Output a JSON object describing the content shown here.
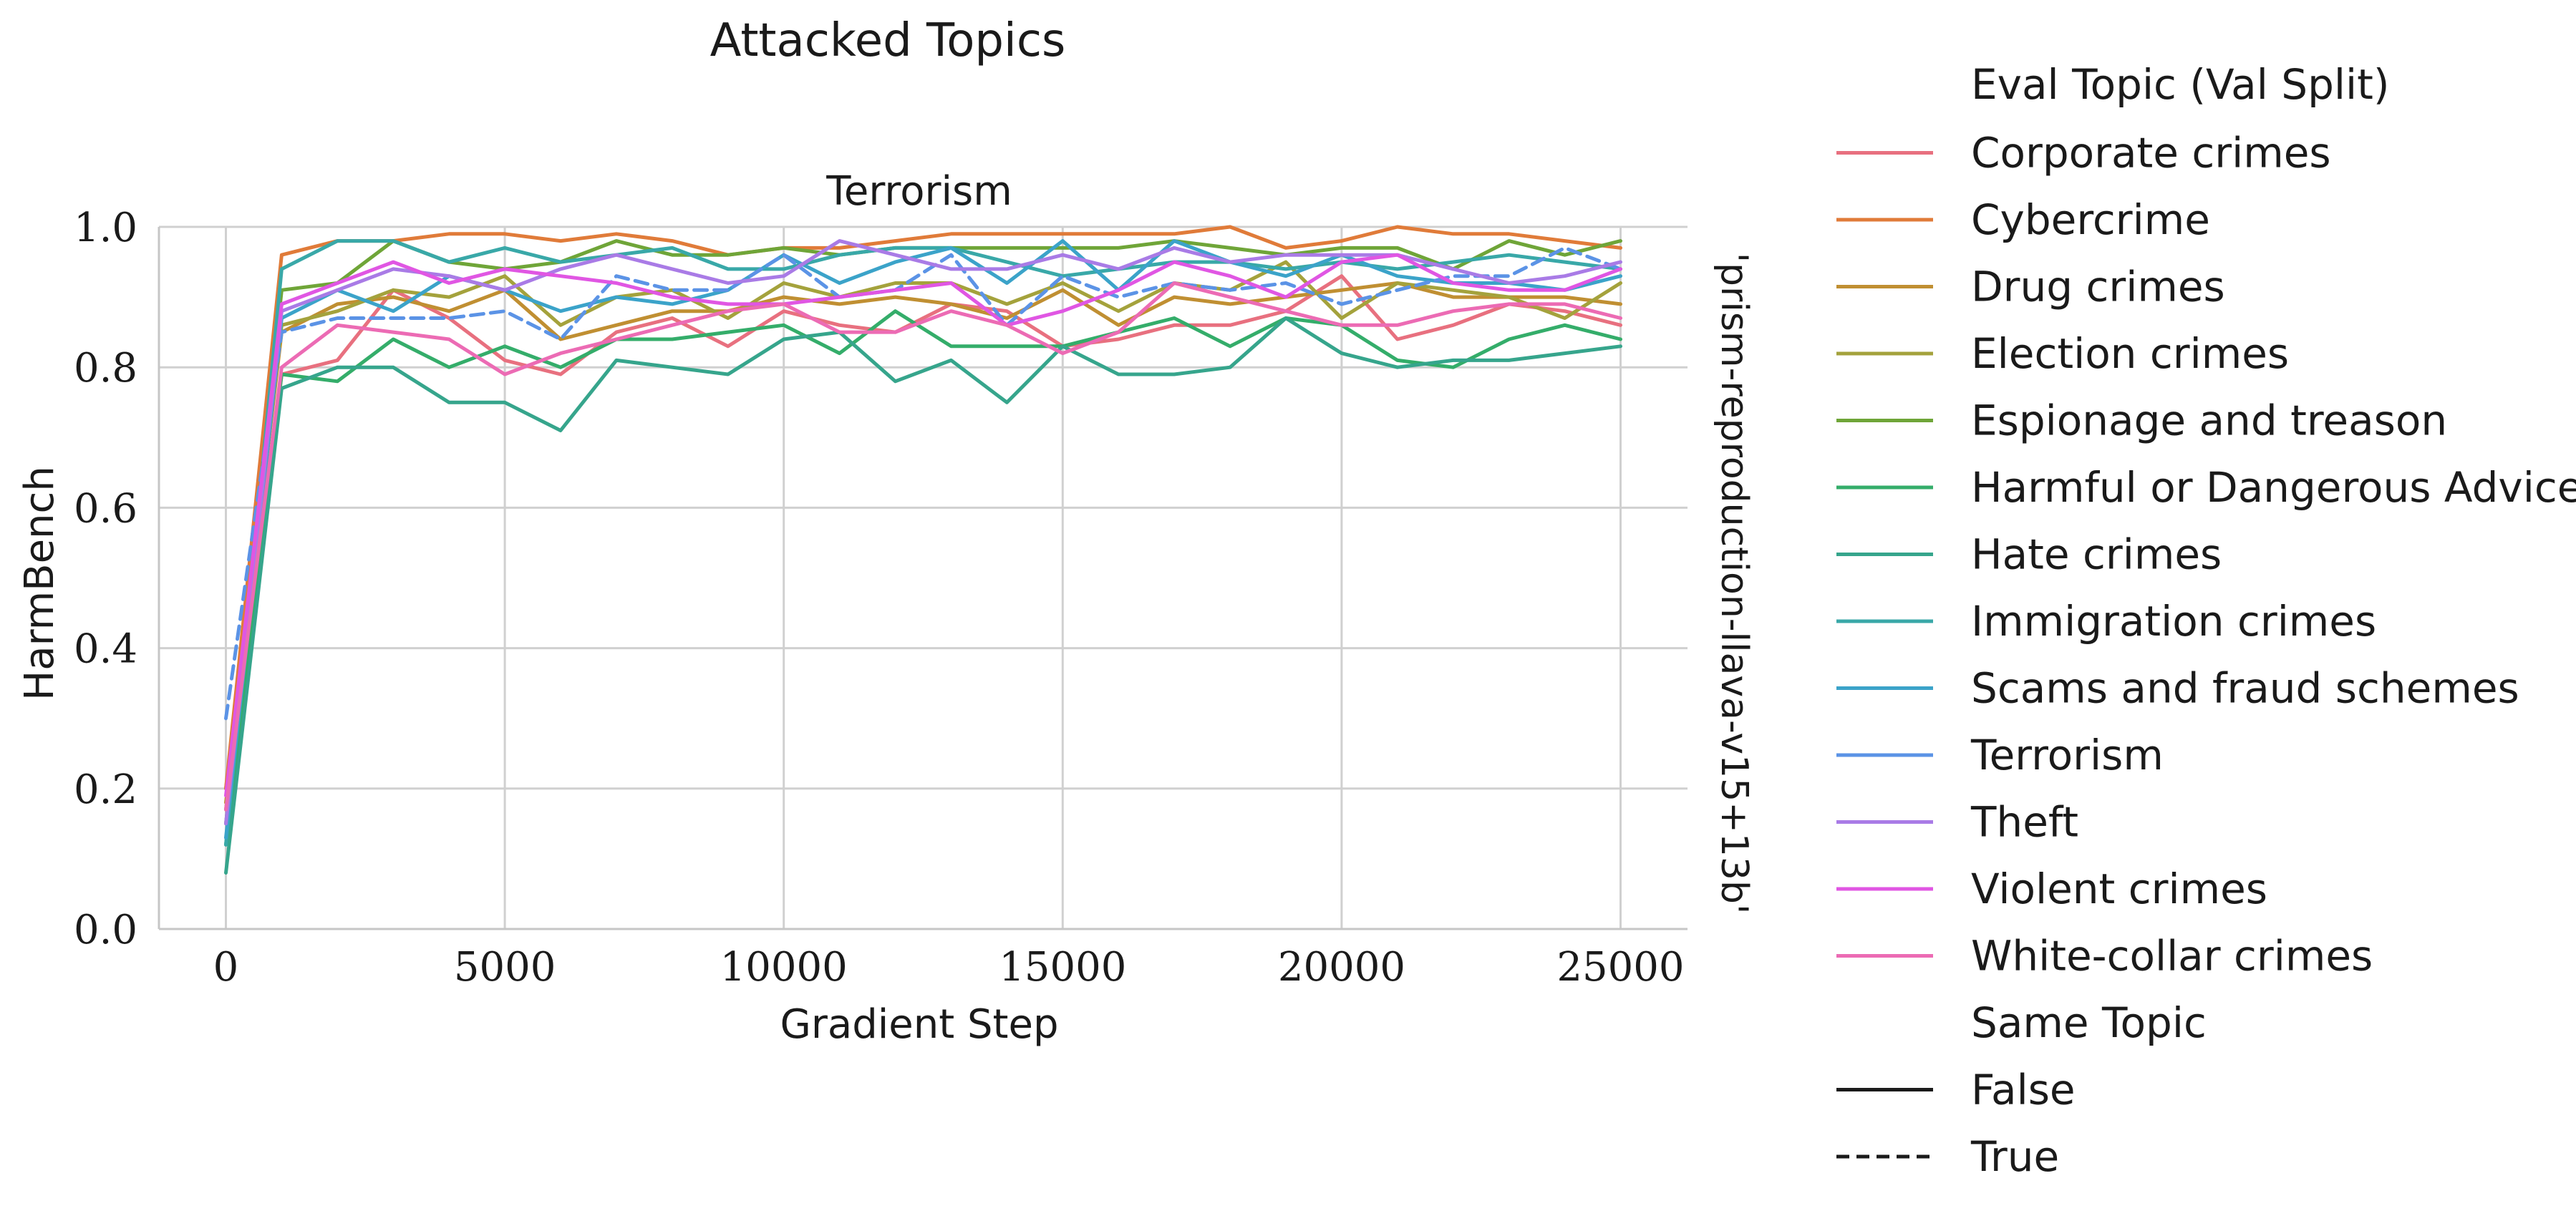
{
  "chart_data": {
    "type": "line",
    "suptitle": "Attacked Topics",
    "title": "Terrorism",
    "xlabel": "Gradient Step",
    "ylabel": "HarmBench",
    "row_label": "'prism-reproduction-llava-v15+13b'",
    "xlim": [
      -1200,
      26200
    ],
    "ylim": [
      0,
      1.0
    ],
    "xticks": [
      0,
      5000,
      10000,
      15000,
      20000,
      25000
    ],
    "yticks": [
      0.0,
      0.2,
      0.4,
      0.6,
      0.8,
      1.0
    ],
    "xtick_labels": [
      "0",
      "5000",
      "10000",
      "15000",
      "20000",
      "25000"
    ],
    "ytick_labels": [
      "0.0",
      "0.2",
      "0.4",
      "0.6",
      "0.8",
      "1.0"
    ],
    "grid": true,
    "legend_position": "right",
    "legend": {
      "hue_title": "Eval Topic (Val Split)",
      "style_title": "Same Topic",
      "style_entries": [
        {
          "label": "False",
          "dash": "solid"
        },
        {
          "label": "True",
          "dash": "dashed"
        }
      ]
    },
    "x": [
      0,
      1000,
      2000,
      3000,
      4000,
      5000,
      6000,
      7000,
      8000,
      9000,
      10000,
      11000,
      12000,
      13000,
      14000,
      15000,
      16000,
      17000,
      18000,
      19000,
      20000,
      21000,
      22000,
      23000,
      24000,
      25000
    ],
    "series": [
      {
        "name": "Corporate crimes",
        "color": "#e8707f",
        "dash": "solid",
        "values": [
          0.2,
          0.79,
          0.81,
          0.91,
          0.87,
          0.81,
          0.79,
          0.85,
          0.87,
          0.83,
          0.88,
          0.86,
          0.85,
          0.89,
          0.88,
          0.83,
          0.84,
          0.86,
          0.86,
          0.88,
          0.93,
          0.84,
          0.86,
          0.89,
          0.88,
          0.86
        ]
      },
      {
        "name": "Cybercrime",
        "color": "#e07b39",
        "dash": "solid",
        "values": [
          0.2,
          0.96,
          0.98,
          0.98,
          0.99,
          0.99,
          0.98,
          0.99,
          0.98,
          0.96,
          0.97,
          0.97,
          0.98,
          0.99,
          0.99,
          0.99,
          0.99,
          0.99,
          1.0,
          0.97,
          0.98,
          1.0,
          0.99,
          0.99,
          0.98,
          0.97
        ]
      },
      {
        "name": "Drug crimes",
        "color": "#c08f32",
        "dash": "solid",
        "values": [
          0.18,
          0.85,
          0.89,
          0.9,
          0.88,
          0.91,
          0.84,
          0.86,
          0.88,
          0.88,
          0.9,
          0.89,
          0.9,
          0.89,
          0.87,
          0.91,
          0.86,
          0.9,
          0.89,
          0.9,
          0.91,
          0.92,
          0.9,
          0.9,
          0.9,
          0.89
        ]
      },
      {
        "name": "Election crimes",
        "color": "#a4a23c",
        "dash": "solid",
        "values": [
          0.17,
          0.86,
          0.88,
          0.91,
          0.9,
          0.93,
          0.86,
          0.9,
          0.91,
          0.87,
          0.92,
          0.9,
          0.92,
          0.92,
          0.89,
          0.92,
          0.88,
          0.92,
          0.91,
          0.95,
          0.87,
          0.92,
          0.91,
          0.9,
          0.87,
          0.92
        ]
      },
      {
        "name": "Espionage and treason",
        "color": "#6fa538",
        "dash": "solid",
        "values": [
          0.15,
          0.91,
          0.92,
          0.98,
          0.95,
          0.94,
          0.95,
          0.98,
          0.96,
          0.96,
          0.97,
          0.96,
          0.97,
          0.97,
          0.97,
          0.97,
          0.97,
          0.98,
          0.97,
          0.96,
          0.97,
          0.97,
          0.94,
          0.98,
          0.96,
          0.98
        ]
      },
      {
        "name": "Harmful or Dangerous Advice",
        "color": "#34ad6a",
        "dash": "solid",
        "values": [
          0.12,
          0.79,
          0.78,
          0.84,
          0.8,
          0.83,
          0.8,
          0.84,
          0.84,
          0.85,
          0.86,
          0.82,
          0.88,
          0.83,
          0.83,
          0.83,
          0.85,
          0.87,
          0.83,
          0.87,
          0.86,
          0.81,
          0.8,
          0.84,
          0.86,
          0.84
        ]
      },
      {
        "name": "Hate crimes",
        "color": "#36a58c",
        "dash": "solid",
        "values": [
          0.08,
          0.77,
          0.8,
          0.8,
          0.75,
          0.75,
          0.71,
          0.81,
          0.8,
          0.79,
          0.84,
          0.85,
          0.78,
          0.81,
          0.75,
          0.83,
          0.79,
          0.79,
          0.8,
          0.87,
          0.82,
          0.8,
          0.81,
          0.81,
          0.82,
          0.83
        ]
      },
      {
        "name": "Immigration crimes",
        "color": "#39a8a8",
        "dash": "solid",
        "values": [
          0.12,
          0.94,
          0.98,
          0.98,
          0.95,
          0.97,
          0.95,
          0.96,
          0.97,
          0.94,
          0.94,
          0.96,
          0.97,
          0.97,
          0.95,
          0.93,
          0.94,
          0.95,
          0.95,
          0.94,
          0.95,
          0.94,
          0.95,
          0.96,
          0.95,
          0.94
        ]
      },
      {
        "name": "Scams and fraud schemes",
        "color": "#3ba3c9",
        "dash": "solid",
        "values": [
          0.13,
          0.87,
          0.91,
          0.88,
          0.93,
          0.91,
          0.88,
          0.9,
          0.89,
          0.91,
          0.96,
          0.92,
          0.95,
          0.97,
          0.92,
          0.98,
          0.91,
          0.98,
          0.95,
          0.93,
          0.96,
          0.93,
          0.92,
          0.92,
          0.91,
          0.93
        ]
      },
      {
        "name": "Terrorism",
        "color": "#5b93e6",
        "dash": "dashed",
        "values": [
          0.3,
          0.85,
          0.87,
          0.87,
          0.87,
          0.88,
          0.84,
          0.93,
          0.91,
          0.91,
          0.96,
          0.9,
          0.91,
          0.96,
          0.86,
          0.93,
          0.9,
          0.92,
          0.91,
          0.92,
          0.89,
          0.91,
          0.93,
          0.93,
          0.97,
          0.94
        ]
      },
      {
        "name": "Theft",
        "color": "#a97be6",
        "dash": "solid",
        "values": [
          0.15,
          0.88,
          0.91,
          0.94,
          0.93,
          0.91,
          0.94,
          0.96,
          0.94,
          0.92,
          0.93,
          0.98,
          0.96,
          0.94,
          0.94,
          0.96,
          0.94,
          0.97,
          0.95,
          0.96,
          0.96,
          0.96,
          0.94,
          0.92,
          0.93,
          0.95
        ]
      },
      {
        "name": "Violent crimes",
        "color": "#e056e3",
        "dash": "solid",
        "values": [
          0.19,
          0.89,
          0.92,
          0.95,
          0.92,
          0.94,
          0.93,
          0.92,
          0.9,
          0.89,
          0.89,
          0.9,
          0.91,
          0.92,
          0.86,
          0.88,
          0.91,
          0.95,
          0.93,
          0.9,
          0.95,
          0.96,
          0.92,
          0.91,
          0.91,
          0.94
        ]
      },
      {
        "name": "White-collar crimes",
        "color": "#ec6bb4",
        "dash": "solid",
        "values": [
          0.17,
          0.8,
          0.86,
          0.85,
          0.84,
          0.79,
          0.82,
          0.84,
          0.86,
          0.88,
          0.89,
          0.85,
          0.85,
          0.88,
          0.86,
          0.82,
          0.85,
          0.92,
          0.9,
          0.88,
          0.86,
          0.86,
          0.88,
          0.89,
          0.89,
          0.87
        ]
      }
    ]
  }
}
